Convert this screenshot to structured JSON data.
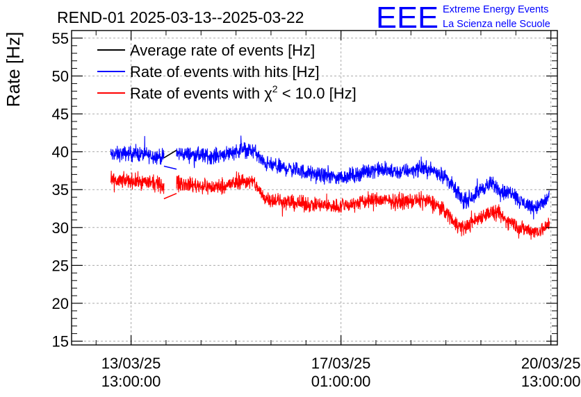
{
  "logo": {
    "mark": "EEE",
    "line1": "Extreme Energy Events",
    "line2": "La Scienza nelle Scuole",
    "color": "#0000ff"
  },
  "chart_data": {
    "type": "line",
    "title": "REND-01 2025-03-13--2025-03-22",
    "xlabel": "",
    "ylabel": "Rate [Hz]",
    "ylim": [
      14.5,
      56
    ],
    "yticks": [
      15,
      20,
      25,
      30,
      35,
      40,
      45,
      50,
      55
    ],
    "x_unit": "days since 13/03/25 00:00:00",
    "xlim": [
      -0.45,
      7.65
    ],
    "xticks": [
      {
        "x": 0.5417,
        "line1": "13/03/25",
        "line2": "13:00:00"
      },
      {
        "x": 4.0417,
        "line1": "17/03/25",
        "line2": "01:00:00"
      },
      {
        "x": 7.5417,
        "line1": "20/03/25",
        "line2": "13:00:00"
      }
    ],
    "grid": true,
    "legend_position": "top-left",
    "legend": [
      {
        "name": "Average rate of events [Hz]",
        "prefix": "Average rate of events [Hz]",
        "greek": "",
        "sup": "",
        "suffix": "",
        "color": "#000000"
      },
      {
        "name": "Rate of events with hits [Hz]",
        "prefix": "Rate of events with hits [Hz]",
        "greek": "",
        "sup": "",
        "suffix": "",
        "color": "#0000ff"
      },
      {
        "name": "Rate of events with chi2 < 10.0 [Hz]",
        "prefix": "Rate of events with ",
        "greek": "χ",
        "sup": "2",
        "suffix": " < 10.0 [Hz]",
        "color": "#ff0000"
      }
    ],
    "series": [
      {
        "name": "Rate of events with hits [Hz]",
        "color": "#0000ff",
        "noise": 1.1,
        "segments": [
          {
            "x": [
              0.2,
              0.5,
              0.8,
              1.05,
              1.09
            ],
            "y": [
              39.6,
              39.8,
              39.6,
              39.3,
              39.2
            ]
          },
          {
            "x": [
              1.3,
              1.6,
              1.9,
              2.2,
              2.4,
              2.6,
              2.75,
              3.0,
              3.3,
              3.6,
              4.0,
              4.3,
              4.6,
              5.0,
              5.4,
              5.6,
              5.8,
              5.95,
              6.1,
              6.25,
              6.4,
              6.55,
              6.7,
              6.8,
              6.9,
              7.0,
              7.15,
              7.3,
              7.45,
              7.52
            ],
            "y": [
              39.8,
              39.6,
              39.4,
              39.9,
              40.3,
              40.1,
              38.5,
              38.0,
              37.6,
              37.0,
              36.6,
              37.0,
              37.7,
              37.3,
              37.8,
              37.5,
              36.6,
              34.9,
              33.4,
              34.2,
              35.2,
              35.8,
              35.0,
              34.5,
              34.8,
              33.6,
              33.0,
              32.7,
              33.4,
              34.6
            ]
          }
        ]
      },
      {
        "name": "Rate of events with chi2 < 10.0 [Hz]",
        "color": "#ff0000",
        "noise": 1.1,
        "segments": [
          {
            "x": [
              0.2,
              0.5,
              0.8,
              1.05,
              1.09
            ],
            "y": [
              36.1,
              36.2,
              36.0,
              35.6,
              35.2
            ]
          },
          {
            "x": [
              1.3,
              1.6,
              1.9,
              2.2,
              2.4,
              2.6,
              2.75,
              3.0,
              3.3,
              3.6,
              4.0,
              4.3,
              4.6,
              5.0,
              5.4,
              5.6,
              5.8,
              5.95,
              6.1,
              6.25,
              6.4,
              6.55,
              6.7,
              6.8,
              6.9,
              7.0,
              7.15,
              7.3,
              7.45,
              7.52
            ],
            "y": [
              35.9,
              35.6,
              35.3,
              35.7,
              36.2,
              35.9,
              34.0,
              33.5,
              33.2,
              33.0,
              32.8,
              33.2,
              33.7,
              33.4,
              33.6,
              33.2,
              32.0,
              30.6,
              29.9,
              30.8,
              31.6,
              32.0,
              31.6,
              30.9,
              30.7,
              30.0,
              29.7,
              29.5,
              29.9,
              30.7
            ]
          }
        ]
      }
    ],
    "gap_lines": [
      {
        "color": "#000000",
        "x": [
          1.09,
          1.3
        ],
        "y": [
          39.2,
          40.2
        ]
      },
      {
        "color": "#0000ff",
        "x": [
          1.09,
          1.3
        ],
        "y": [
          38.1,
          37.7
        ]
      },
      {
        "color": "#ff0000",
        "x": [
          1.09,
          1.3
        ],
        "y": [
          33.8,
          34.5
        ]
      }
    ]
  }
}
